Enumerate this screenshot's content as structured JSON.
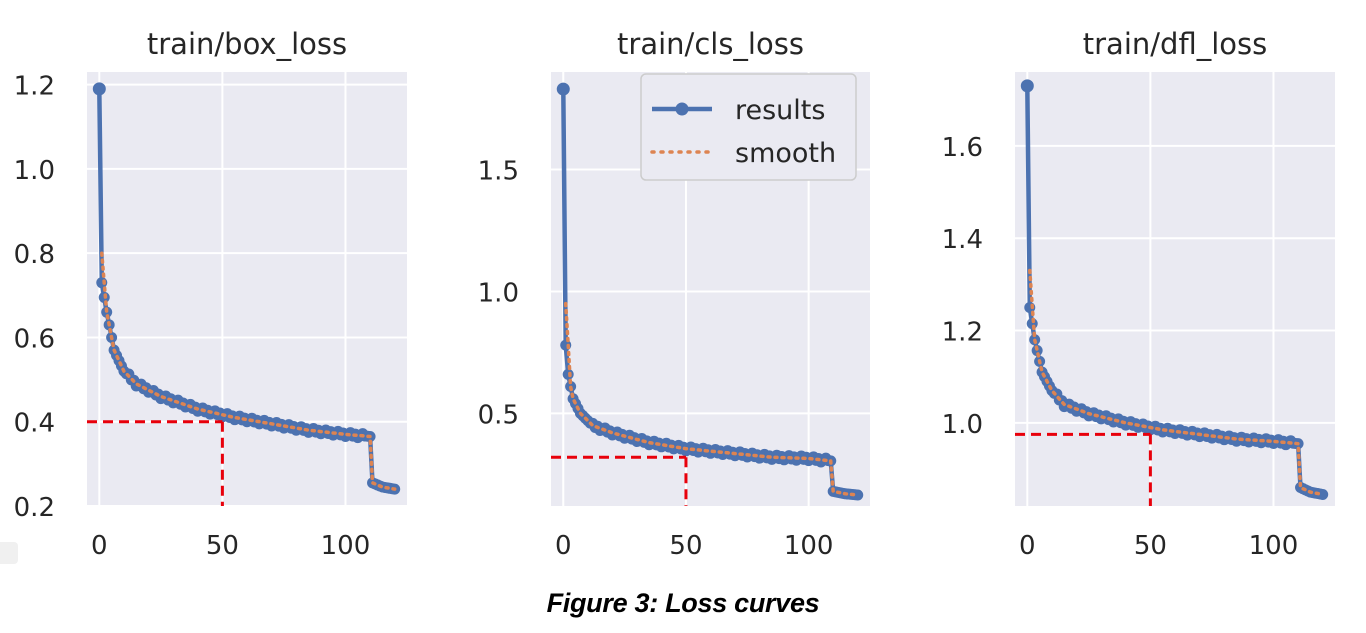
{
  "figure": {
    "caption": "Figure 3: Loss curves"
  },
  "colors": {
    "panel_bg": "#eaeaf2",
    "grid": "#ffffff",
    "results": "#4c72b0",
    "smooth": "#dd8452",
    "reference": "#e8000b"
  },
  "chart_data": [
    {
      "type": "line",
      "title": "train/box_loss",
      "xlabel": "",
      "ylabel": "",
      "xlim": [
        -5,
        125
      ],
      "ylim": [
        0.2,
        1.23
      ],
      "xticks": [
        0,
        50,
        100
      ],
      "xtick_labels": [
        "0",
        "50",
        "100"
      ],
      "yticks": [
        0.2,
        0.4,
        0.6,
        0.8,
        1.0,
        1.2
      ],
      "ytick_labels": [
        "0.2",
        "0.4",
        "0.6",
        "0.8",
        "1.0",
        "1.2"
      ],
      "legend": null,
      "shape": {
        "start": 1.19,
        "knots": [
          [
            1,
            0.73
          ],
          [
            3,
            0.66
          ],
          [
            6,
            0.57
          ],
          [
            10,
            0.52
          ],
          [
            15,
            0.49
          ],
          [
            25,
            0.46
          ],
          [
            40,
            0.43
          ],
          [
            55,
            0.41
          ],
          [
            70,
            0.395
          ],
          [
            85,
            0.38
          ],
          [
            100,
            0.37
          ],
          [
            110,
            0.365
          ],
          [
            111,
            0.255
          ],
          [
            115,
            0.245
          ],
          [
            120,
            0.24
          ]
        ],
        "smooth_start": 0.8
      },
      "reference": {
        "x": 50,
        "y": 0.4
      },
      "series": [
        {
          "name": "results"
        },
        {
          "name": "smooth"
        }
      ]
    },
    {
      "type": "line",
      "title": "train/cls_loss",
      "xlabel": "",
      "ylabel": "",
      "xlim": [
        -5,
        125
      ],
      "ylim": [
        0.12,
        1.9
      ],
      "xticks": [
        0,
        50,
        100
      ],
      "xtick_labels": [
        "0",
        "50",
        "100"
      ],
      "yticks": [
        0.5,
        1.0,
        1.5
      ],
      "ytick_labels": [
        "0.5",
        "1.0",
        "1.5"
      ],
      "legend": {
        "position": "upper right",
        "entries": [
          "results",
          "smooth"
        ]
      },
      "shape": {
        "start": 1.83,
        "knots": [
          [
            1,
            0.78
          ],
          [
            2,
            0.66
          ],
          [
            4,
            0.56
          ],
          [
            7,
            0.5
          ],
          [
            12,
            0.45
          ],
          [
            20,
            0.42
          ],
          [
            35,
            0.38
          ],
          [
            50,
            0.355
          ],
          [
            70,
            0.335
          ],
          [
            85,
            0.32
          ],
          [
            100,
            0.315
          ],
          [
            109,
            0.305
          ],
          [
            110,
            0.18
          ],
          [
            115,
            0.17
          ],
          [
            120,
            0.165
          ]
        ],
        "smooth_start": 0.95
      },
      "reference": {
        "x": 50,
        "y": 0.32
      },
      "series": [
        {
          "name": "results"
        },
        {
          "name": "smooth"
        }
      ]
    },
    {
      "type": "line",
      "title": "train/dfl_loss",
      "xlabel": "",
      "ylabel": "",
      "xlim": [
        -5,
        125
      ],
      "ylim": [
        0.82,
        1.76
      ],
      "xticks": [
        0,
        50,
        100
      ],
      "xtick_labels": [
        "0",
        "50",
        "100"
      ],
      "yticks": [
        1.0,
        1.2,
        1.4,
        1.6
      ],
      "ytick_labels": [
        "1.0",
        "1.2",
        "1.4",
        "1.6"
      ],
      "legend": null,
      "shape": {
        "start": 1.73,
        "knots": [
          [
            1,
            1.25
          ],
          [
            3,
            1.18
          ],
          [
            6,
            1.11
          ],
          [
            10,
            1.07
          ],
          [
            15,
            1.04
          ],
          [
            25,
            1.02
          ],
          [
            40,
            1.0
          ],
          [
            55,
            0.985
          ],
          [
            70,
            0.975
          ],
          [
            85,
            0.965
          ],
          [
            100,
            0.96
          ],
          [
            110,
            0.955
          ],
          [
            111,
            0.86
          ],
          [
            115,
            0.85
          ],
          [
            120,
            0.845
          ]
        ],
        "smooth_start": 1.33
      },
      "reference": {
        "x": 50,
        "y": 0.975
      },
      "series": [
        {
          "name": "results"
        },
        {
          "name": "smooth"
        }
      ]
    }
  ]
}
